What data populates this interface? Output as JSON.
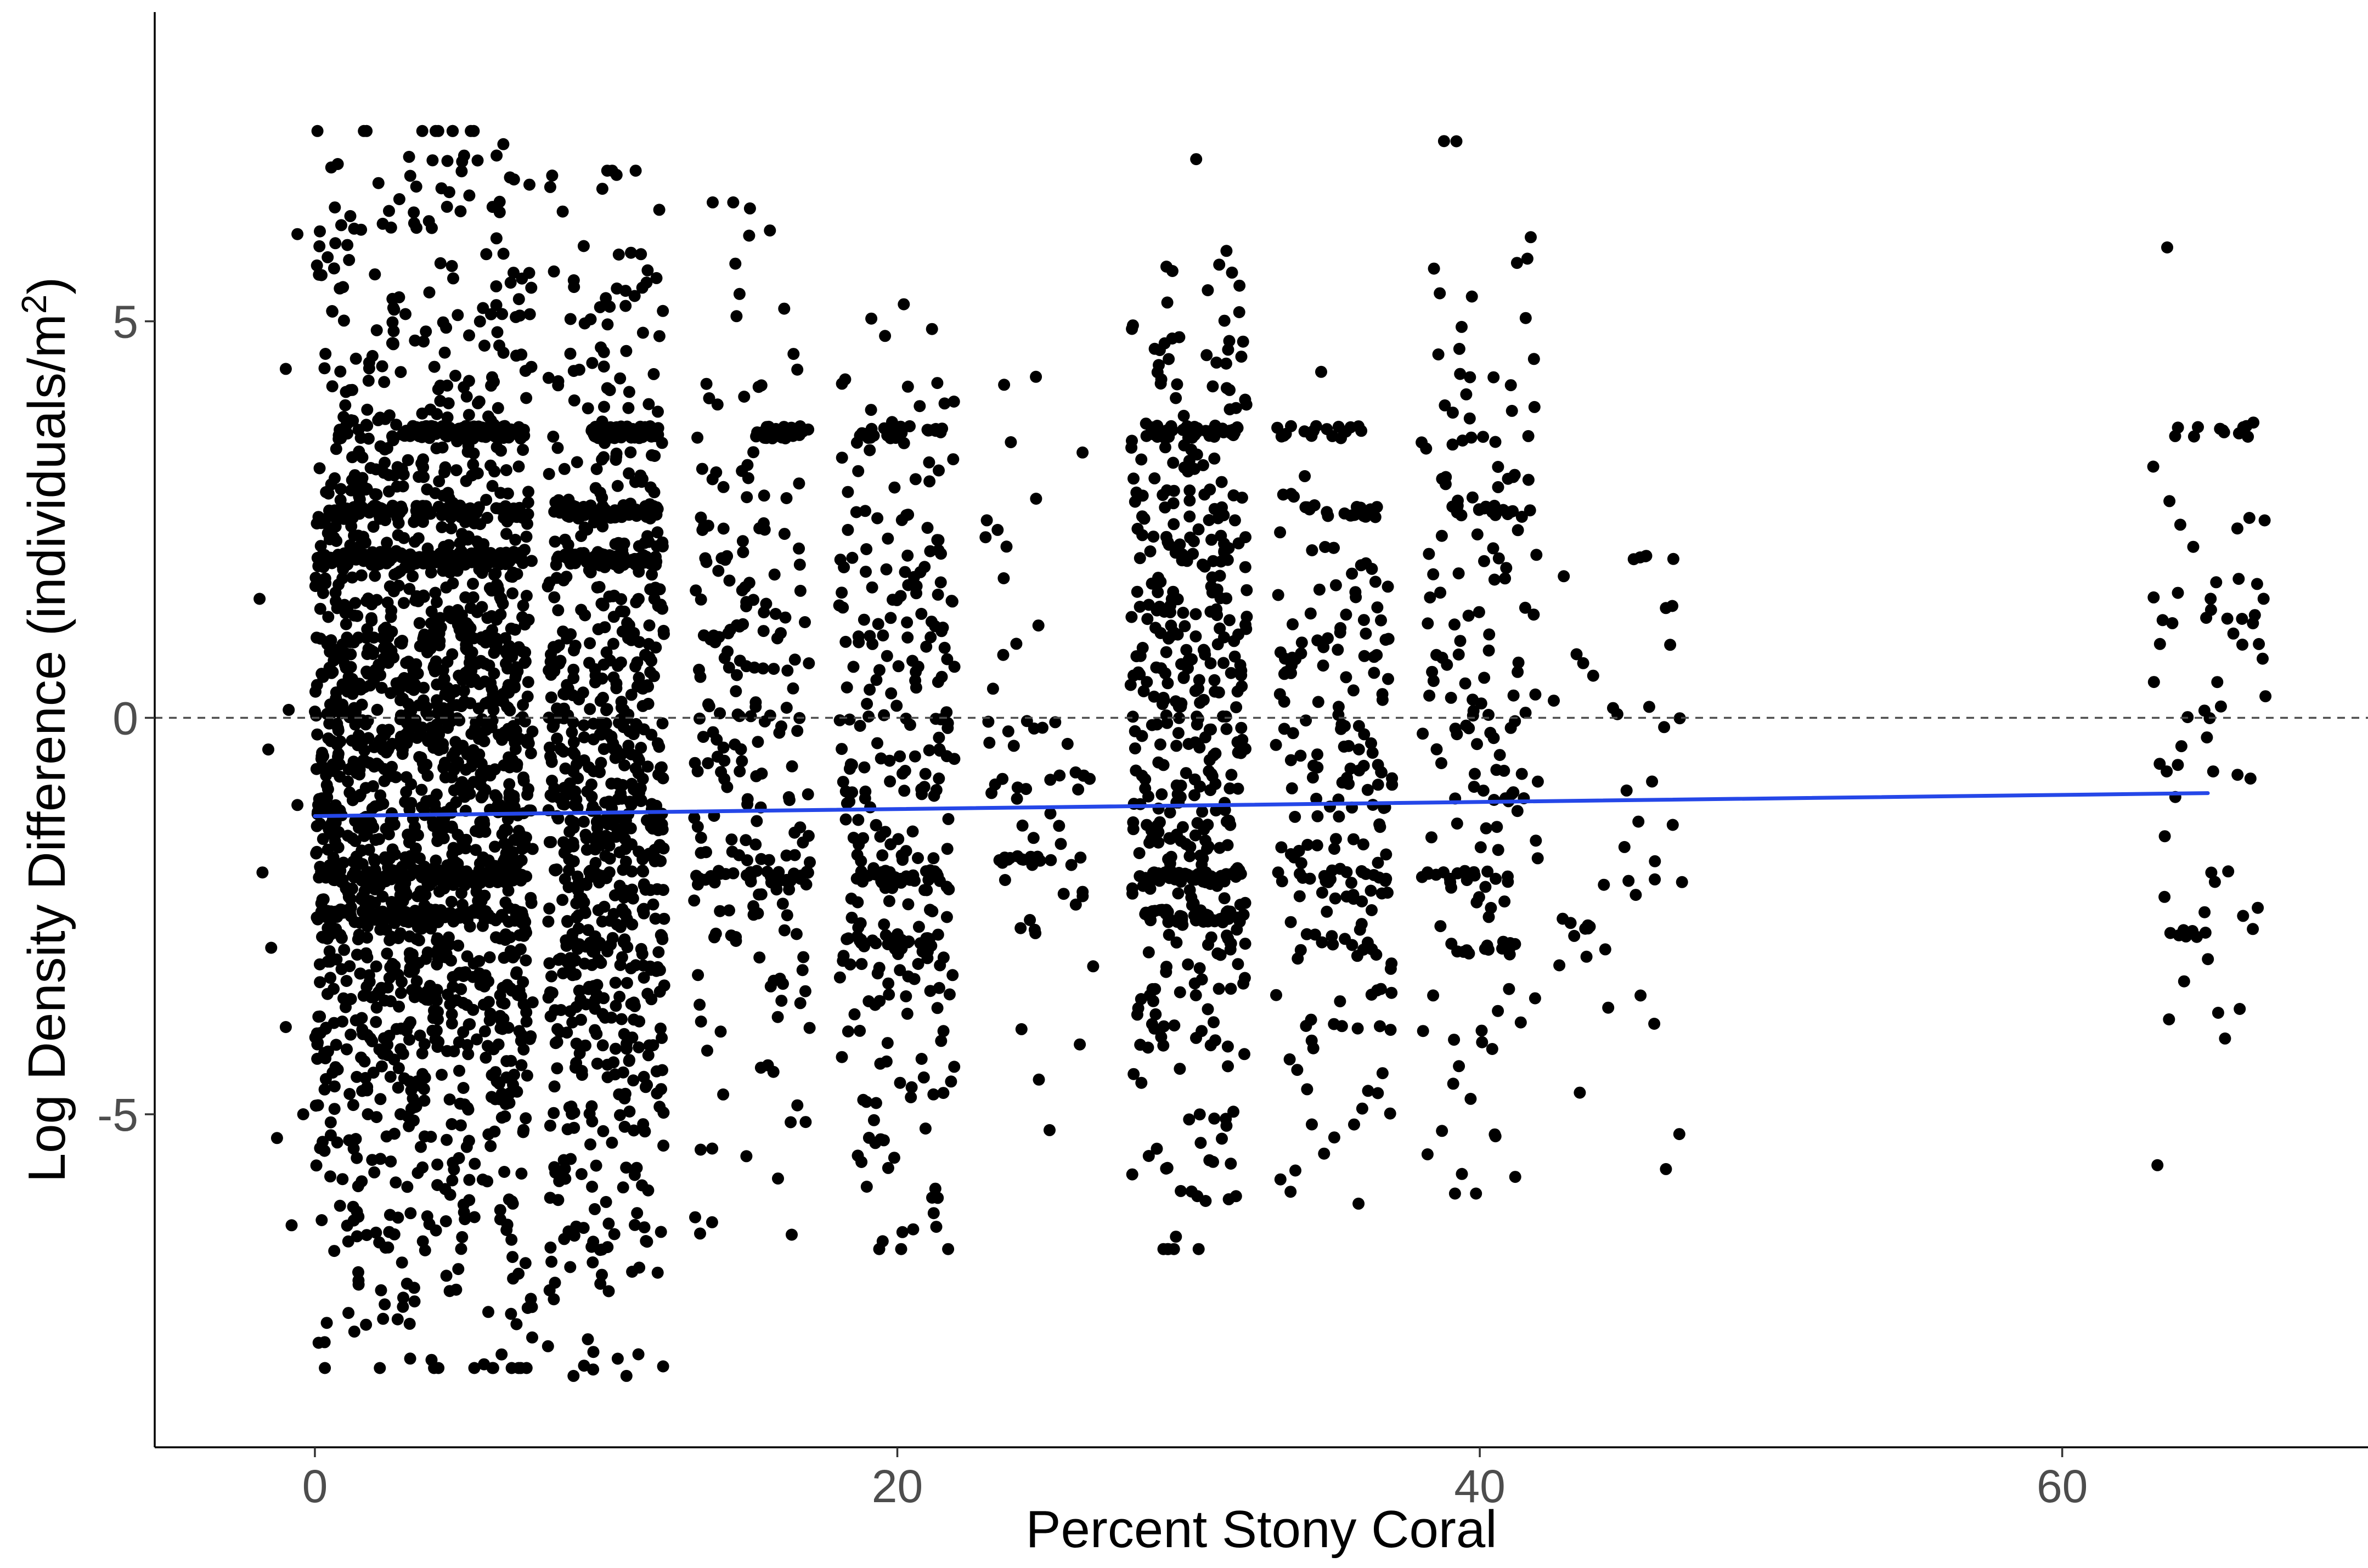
{
  "chart_data": {
    "type": "scatter",
    "title": "",
    "xlabel": "Percent Stony Coral",
    "ylabel": {
      "prefix": "Log Density Difference (individuals/m",
      "superscript": "2",
      "suffix": ")"
    },
    "xlim": [
      -5.5,
      70.5
    ],
    "ylim": [
      -9.2,
      8.9
    ],
    "x_ticks": [
      0,
      20,
      40,
      60
    ],
    "x_tick_labels": [
      "0",
      "20",
      "40",
      "60"
    ],
    "y_ticks": [
      -5,
      0,
      5
    ],
    "y_tick_labels": [
      "-5",
      "0",
      "5"
    ],
    "grid": false,
    "legend": "none",
    "reference_line": {
      "y": 0,
      "style": "dashed",
      "color": "#4d4d4d"
    },
    "trend_line": {
      "x": [
        0,
        65
      ],
      "y": [
        -1.24,
        -0.95
      ],
      "color": "#2547e8"
    },
    "point_color": "#000000",
    "point_distribution_note_free": true,
    "clusters": [
      {
        "x_range": [
          0,
          7.5
        ],
        "y_range": [
          -8.2,
          7.4
        ],
        "n": 2200,
        "bands": [
          {
            "y": 2.0,
            "x_range": [
              0,
              7.2
            ]
          },
          {
            "y": 2.6,
            "x_range": [
              0.5,
              7.2
            ]
          },
          {
            "y": -2.0,
            "x_range": [
              0,
              7.2
            ]
          },
          {
            "y": -2.5,
            "x_range": [
              0,
              7.2
            ]
          },
          {
            "y": 3.6,
            "x_range": [
              3.0,
              7.2
            ]
          }
        ]
      },
      {
        "x_range": [
          8.0,
          12.0
        ],
        "y_range": [
          -8.3,
          6.9
        ],
        "n": 950,
        "bands": [
          {
            "y": 2.0,
            "x_range": [
              8.2,
              11.8
            ]
          },
          {
            "y": 2.6,
            "x_range": [
              8.2,
              11.8
            ]
          },
          {
            "y": 3.6,
            "x_range": [
              9.5,
              11.8
            ]
          }
        ]
      },
      {
        "x_range": [
          13.0,
          17.0
        ],
        "y_range": [
          -7.2,
          6.5
        ],
        "n": 280,
        "bands": [
          {
            "y": 3.6,
            "x_range": [
              15.0,
              17.0
            ]
          },
          {
            "y": -2.0,
            "x_range": [
              13.0,
              17.0
            ]
          }
        ]
      },
      {
        "x_range": [
          18.0,
          22.0
        ],
        "y_range": [
          -6.7,
          5.9
        ],
        "n": 350,
        "bands": [
          {
            "y": 3.6,
            "x_range": [
              18.5,
              21.8
            ]
          },
          {
            "y": -2.0,
            "x_range": [
              18.5,
              21.5
            ]
          },
          {
            "y": -2.8,
            "x_range": [
              18.0,
              21.5
            ]
          }
        ]
      },
      {
        "x_range": [
          23.0,
          27.0
        ],
        "y_range": [
          -5.2,
          4.3
        ],
        "n": 70,
        "bands": [
          {
            "y": -1.8,
            "x_range": [
              23.5,
              26.5
            ]
          }
        ]
      },
      {
        "x_range": [
          28.0,
          32.0
        ],
        "y_range": [
          -6.7,
          7.1
        ],
        "n": 560,
        "bands": [
          {
            "y": 3.6,
            "x_range": [
              28.5,
              31.8
            ]
          },
          {
            "y": -2.0,
            "x_range": [
              28.5,
              31.8
            ]
          },
          {
            "y": -2.5,
            "x_range": [
              28.5,
              31.8
            ]
          }
        ]
      },
      {
        "x_range": [
          33.0,
          37.0
        ],
        "y_range": [
          -6.2,
          4.4
        ],
        "n": 240,
        "bands": [
          {
            "y": 3.6,
            "x_range": [
              33.0,
              36.0
            ]
          },
          {
            "y": 2.6,
            "x_range": [
              34.0,
              36.5
            ]
          },
          {
            "y": -2.0,
            "x_range": [
              33.0,
              36.8
            ]
          }
        ]
      },
      {
        "x_range": [
          38.0,
          42.0
        ],
        "y_range": [
          -6.0,
          8.1
        ],
        "n": 200,
        "bands": [
          {
            "y": 2.6,
            "x_range": [
              39.0,
              41.5
            ]
          },
          {
            "y": -2.0,
            "x_range": [
              38.0,
              41.0
            ]
          },
          {
            "y": -2.9,
            "x_range": [
              39.0,
              41.8
            ]
          }
        ]
      },
      {
        "x_range": [
          42.5,
          47.0
        ],
        "y_range": [
          -5.9,
          4.1
        ],
        "n": 45,
        "bands": [
          {
            "y": 2.0,
            "x_range": [
              45.0,
              47.0
            ]
          },
          {
            "y": -2.6,
            "x_range": [
              43.0,
              44.0
            ]
          }
        ]
      },
      {
        "x_range": [
          63.0,
          67.0
        ],
        "y_range": [
          -6.1,
          7.0
        ],
        "n": 80,
        "bands": [
          {
            "y": 3.6,
            "x_range": [
              63.5,
              67.0
            ]
          },
          {
            "y": -2.7,
            "x_range": [
              63.5,
              67.0
            ]
          }
        ]
      }
    ],
    "outliers": [
      {
        "x": -1.9,
        "y": 1.5
      },
      {
        "x": -1.8,
        "y": -1.95
      },
      {
        "x": -1.6,
        "y": -0.4
      },
      {
        "x": -1.5,
        "y": -2.9
      },
      {
        "x": -1.3,
        "y": -5.3
      },
      {
        "x": -1.0,
        "y": 4.4
      },
      {
        "x": -1.0,
        "y": -3.9
      },
      {
        "x": -0.9,
        "y": 0.1
      },
      {
        "x": -0.8,
        "y": -6.4
      },
      {
        "x": -0.6,
        "y": 6.1
      },
      {
        "x": -0.6,
        "y": -1.1
      },
      {
        "x": -0.4,
        "y": -5.0
      }
    ]
  }
}
